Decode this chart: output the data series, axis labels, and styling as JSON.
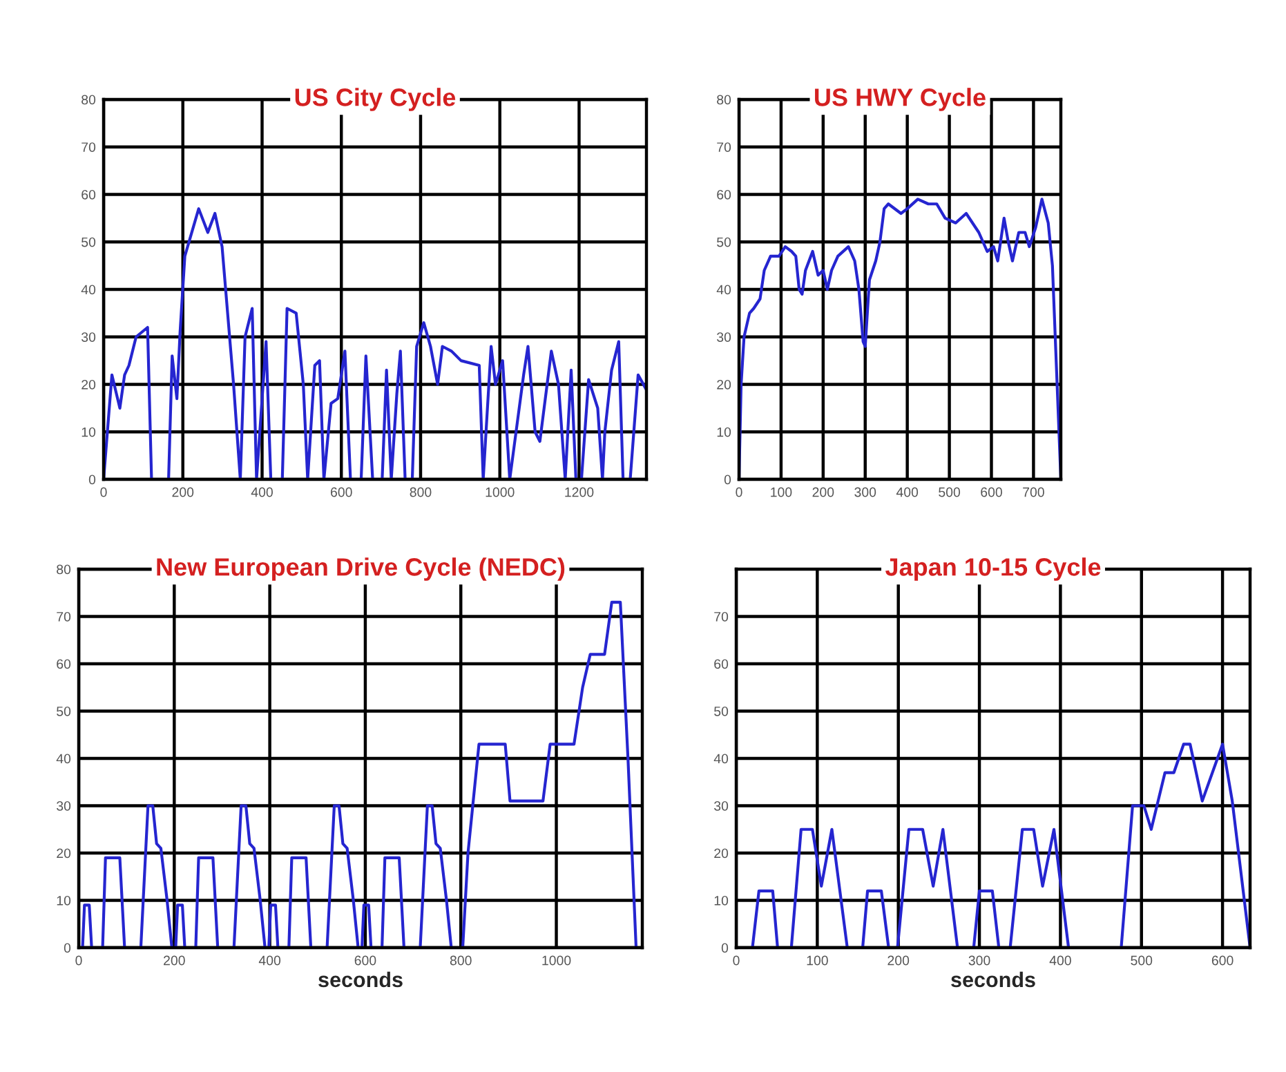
{
  "chart_data": [
    {
      "type": "line",
      "title": "US City Cycle",
      "xlim": [
        0,
        1370
      ],
      "xticks": [
        0,
        200,
        400,
        600,
        800,
        1000,
        1200
      ],
      "ylim": [
        0,
        80
      ],
      "yticks": [
        0,
        10,
        20,
        30,
        40,
        50,
        60,
        70,
        80
      ],
      "grid": true,
      "series": [
        {
          "color": "#2525d0",
          "x": [
            0,
            21,
            41,
            53,
            64,
            82,
            111,
            121,
            164,
            173,
            185,
            193,
            205,
            240,
            263,
            281,
            299,
            328,
            345,
            357,
            375,
            386,
            410,
            422,
            451,
            463,
            486,
            504,
            515,
            533,
            545,
            556,
            574,
            591,
            609,
            623,
            650,
            662,
            679,
            703,
            714,
            726,
            740,
            749,
            761,
            779,
            790,
            808,
            825,
            843,
            855,
            878,
            902,
            948,
            958,
            978,
            989,
            1007,
            1025,
            1060,
            1071,
            1089,
            1101,
            1130,
            1148,
            1165,
            1180,
            1192,
            1206,
            1224,
            1247,
            1259,
            1265,
            1282,
            1300,
            1311,
            1329,
            1349,
            1369
          ],
          "values": [
            0,
            22,
            15,
            22,
            24,
            30,
            32,
            0,
            0,
            26,
            17,
            31,
            47,
            57,
            52,
            56,
            49,
            20,
            0,
            30,
            36,
            0,
            29,
            0,
            0,
            36,
            35,
            20,
            0,
            24,
            25,
            0,
            16,
            17,
            27,
            0,
            0,
            26,
            0,
            0,
            23,
            0,
            18,
            27,
            0,
            0,
            28,
            33,
            28,
            20,
            28,
            27,
            25,
            24,
            0,
            28,
            20,
            25,
            0,
            22,
            28,
            10,
            8,
            27,
            20,
            0,
            23,
            0,
            0,
            21,
            15,
            0,
            10,
            23,
            29,
            0,
            0,
            22,
            19
          ]
        }
      ]
    },
    {
      "type": "line",
      "title": "US HWY Cycle",
      "xlim": [
        0,
        765
      ],
      "xticks": [
        0,
        100,
        200,
        300,
        400,
        500,
        600,
        700
      ],
      "ylim": [
        0,
        80
      ],
      "yticks": [
        0,
        10,
        20,
        30,
        40,
        50,
        60,
        70,
        80
      ],
      "grid": true,
      "series": [
        {
          "color": "#2525d0",
          "x": [
            0,
            5,
            12,
            25,
            35,
            50,
            60,
            75,
            95,
            110,
            125,
            135,
            143,
            150,
            158,
            175,
            188,
            200,
            210,
            220,
            235,
            260,
            275,
            285,
            295,
            300,
            310,
            325,
            335,
            345,
            355,
            385,
            400,
            425,
            450,
            470,
            490,
            515,
            540,
            570,
            590,
            605,
            615,
            630,
            640,
            650,
            665,
            680,
            690,
            705,
            720,
            735,
            745,
            765
          ],
          "values": [
            0,
            20,
            30,
            35,
            36,
            38,
            44,
            47,
            47,
            49,
            48,
            47,
            40,
            39,
            44,
            48,
            43,
            44,
            40,
            44,
            47,
            49,
            46,
            40,
            29,
            28,
            42,
            46,
            50,
            57,
            58,
            56,
            57,
            59,
            58,
            58,
            55,
            54,
            56,
            52,
            48,
            49,
            46,
            55,
            50,
            46,
            52,
            52,
            49,
            53,
            59,
            54,
            45,
            0
          ]
        }
      ]
    },
    {
      "type": "line",
      "title": "New European Drive Cycle (NEDC)",
      "xlabel": "seconds",
      "xlim": [
        0,
        1180
      ],
      "xticks": [
        0,
        200,
        400,
        600,
        800,
        1000
      ],
      "ylim": [
        0,
        80
      ],
      "yticks": [
        0,
        10,
        20,
        30,
        40,
        50,
        60,
        70,
        80
      ],
      "grid": true,
      "series": [
        {
          "color": "#2525d0",
          "x": [
            0,
            8,
            12,
            22,
            27,
            50,
            56,
            86,
            96,
            130,
            140,
            145,
            155,
            163,
            172,
            185,
            195,
            203,
            207,
            217,
            222,
            245,
            251,
            281,
            291,
            325,
            335,
            340,
            350,
            358,
            367,
            380,
            390,
            398,
            402,
            412,
            417,
            440,
            446,
            476,
            486,
            520,
            530,
            535,
            545,
            553,
            562,
            575,
            585,
            593,
            597,
            607,
            612,
            635,
            641,
            671,
            681,
            715,
            725,
            730,
            740,
            748,
            757,
            770,
            780,
            804,
            815,
            825,
            838,
            893,
            903,
            972,
            987,
            1037,
            1055,
            1071,
            1101,
            1116,
            1134,
            1150,
            1167,
            1180
          ],
          "values": [
            0,
            0,
            9,
            9,
            0,
            0,
            19,
            19,
            0,
            0,
            20,
            30,
            30,
            22,
            21,
            10,
            0,
            0,
            9,
            9,
            0,
            0,
            19,
            19,
            0,
            0,
            20,
            30,
            30,
            22,
            21,
            10,
            0,
            0,
            9,
            9,
            0,
            0,
            19,
            19,
            0,
            0,
            20,
            30,
            30,
            22,
            21,
            10,
            0,
            0,
            9,
            9,
            0,
            0,
            19,
            19,
            0,
            0,
            20,
            30,
            30,
            22,
            21,
            10,
            0,
            0,
            20,
            30,
            43,
            43,
            31,
            31,
            43,
            43,
            55,
            62,
            62,
            73,
            73,
            40,
            0,
            0
          ]
        }
      ]
    },
    {
      "type": "line",
      "title": "Japan 10-15 Cycle",
      "xlabel": "seconds",
      "xlim": [
        0,
        634
      ],
      "xticks": [
        0,
        100,
        200,
        300,
        400,
        500,
        600
      ],
      "ylim": [
        0,
        80
      ],
      "yticks": [
        0,
        10,
        20,
        30,
        40,
        50,
        60,
        70
      ],
      "grid": true,
      "series": [
        {
          "color": "#2525d0",
          "x": [
            0,
            20,
            28,
            45,
            51,
            68,
            80,
            94,
            105,
            118,
            137,
            156,
            162,
            179,
            188,
            199,
            213,
            230,
            243,
            255,
            273,
            293,
            300,
            316,
            324,
            338,
            353,
            367,
            378,
            392,
            410,
            475,
            489,
            503,
            512,
            529,
            540,
            552,
            560,
            575,
            600,
            612,
            634
          ],
          "values": [
            0,
            0,
            12,
            12,
            0,
            0,
            25,
            25,
            13,
            25,
            0,
            0,
            12,
            12,
            0,
            0,
            25,
            25,
            13,
            25,
            0,
            0,
            12,
            12,
            0,
            0,
            25,
            25,
            13,
            25,
            0,
            0,
            30,
            30,
            25,
            37,
            37,
            43,
            43,
            31,
            43,
            31,
            0
          ]
        }
      ]
    }
  ]
}
